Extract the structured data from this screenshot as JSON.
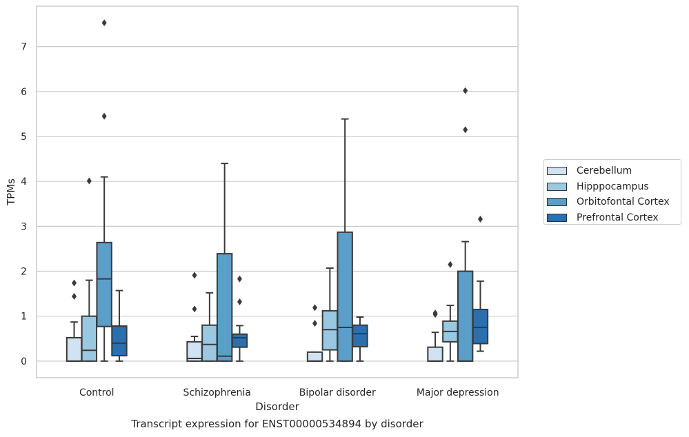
{
  "chart_data": {
    "type": "boxplot",
    "title": "Transcript expression for ENST00000534894 by disorder",
    "xlabel": "Disorder",
    "ylabel": "TPMs",
    "ylim": [
      -0.37,
      7.9
    ],
    "yticks": [
      0,
      1,
      2,
      3,
      4,
      5,
      6,
      7
    ],
    "grid": true,
    "legend_position": "right",
    "categories": [
      "Control",
      "Schizophrenia",
      "Bipolar disorder",
      "Major depression"
    ],
    "series": [
      {
        "name": "Cerebellum",
        "color": "#d1e2f2",
        "boxes": [
          {
            "whislo": 0,
            "q1": 0,
            "med": 0,
            "q3": 0.52,
            "whishi": 0.87,
            "fliers": [
              1.44,
              1.74
            ]
          },
          {
            "whislo": 0,
            "q1": 0,
            "med": 0.06,
            "q3": 0.43,
            "whishi": 0.55,
            "fliers": [
              1.16,
              1.91
            ]
          },
          {
            "whislo": 0,
            "q1": 0,
            "med": 0,
            "q3": 0.2,
            "whishi": 0.2,
            "fliers": [
              0.84,
              1.19
            ]
          },
          {
            "whislo": 0,
            "q1": 0,
            "med": 0,
            "q3": 0.31,
            "whishi": 0.64,
            "fliers": [
              1.04,
              1.07
            ]
          }
        ]
      },
      {
        "name": "Hipppocampus",
        "color": "#9ac8e0",
        "boxes": [
          {
            "whislo": 0,
            "q1": 0,
            "med": 0.24,
            "q3": 1.0,
            "whishi": 1.8,
            "fliers": [
              4.01
            ]
          },
          {
            "whislo": 0,
            "q1": 0,
            "med": 0.37,
            "q3": 0.8,
            "whishi": 1.52,
            "fliers": []
          },
          {
            "whislo": 0,
            "q1": 0.25,
            "med": 0.7,
            "q3": 1.12,
            "whishi": 2.07,
            "fliers": []
          },
          {
            "whislo": 0,
            "q1": 0.43,
            "med": 0.66,
            "q3": 0.89,
            "whishi": 1.24,
            "fliers": [
              2.15
            ]
          }
        ]
      },
      {
        "name": "Orbitofontal Cortex",
        "color": "#5a9ec9",
        "boxes": [
          {
            "whislo": 0,
            "q1": 0.77,
            "med": 1.83,
            "q3": 2.64,
            "whishi": 4.1,
            "fliers": [
              5.45,
              7.53
            ]
          },
          {
            "whislo": 0,
            "q1": 0,
            "med": 0.11,
            "q3": 2.39,
            "whishi": 4.4,
            "fliers": []
          },
          {
            "whislo": 0,
            "q1": 0,
            "med": 0.75,
            "q3": 2.87,
            "whishi": 5.39,
            "fliers": []
          },
          {
            "whislo": 0,
            "q1": 0,
            "med": 0,
            "q3": 2.0,
            "whishi": 2.66,
            "fliers": [
              5.15,
              6.02
            ]
          }
        ]
      },
      {
        "name": "Prefrontal Cortex",
        "color": "#2a6fae",
        "boxes": [
          {
            "whislo": 0,
            "q1": 0.12,
            "med": 0.4,
            "q3": 0.78,
            "whishi": 1.57,
            "fliers": []
          },
          {
            "whislo": 0,
            "q1": 0.31,
            "med": 0.52,
            "q3": 0.6,
            "whishi": 0.79,
            "fliers": [
              1.32,
              1.83
            ]
          },
          {
            "whislo": 0,
            "q1": 0.32,
            "med": 0.61,
            "q3": 0.8,
            "whishi": 0.98,
            "fliers": []
          },
          {
            "whislo": 0.22,
            "q1": 0.39,
            "med": 0.75,
            "q3": 1.15,
            "whishi": 1.78,
            "fliers": [
              3.16
            ]
          }
        ]
      }
    ]
  }
}
